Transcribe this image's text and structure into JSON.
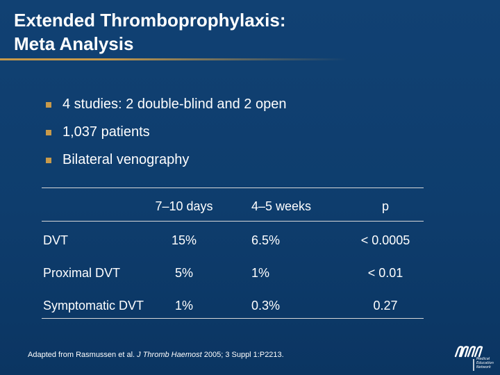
{
  "title": {
    "line1": "Extended Thromboprophylaxis:",
    "line2": "Meta Analysis"
  },
  "bullets": [
    "4 studies: 2 double-blind and 2 open",
    "1,037 patients",
    "Bilateral venography"
  ],
  "table": {
    "headers": [
      "",
      "7–10 days",
      "4–5 weeks",
      "p"
    ],
    "rows": [
      {
        "label": "DVT",
        "days": "15%",
        "weeks": "6.5%",
        "p": "< 0.0005"
      },
      {
        "label": "Proximal DVT",
        "days": "5%",
        "weeks": "1%",
        "p": "< 0.01"
      },
      {
        "label": "Symptomatic DVT",
        "days": "1%",
        "weeks": "0.3%",
        "p": "0.27"
      }
    ]
  },
  "footnote": {
    "prefix": "Adapted from Rasmussen et al.",
    "journal": "J Thromb Haemost",
    "suffix": "2005; 3 Suppl 1:P2213."
  },
  "logo": {
    "line1": "Medical",
    "line2": "Education",
    "line3": "Network"
  },
  "colors": {
    "background": "#0f3f70",
    "accent": "#c89a4a",
    "text": "#ffffff",
    "rule": "#d8d8d8"
  }
}
